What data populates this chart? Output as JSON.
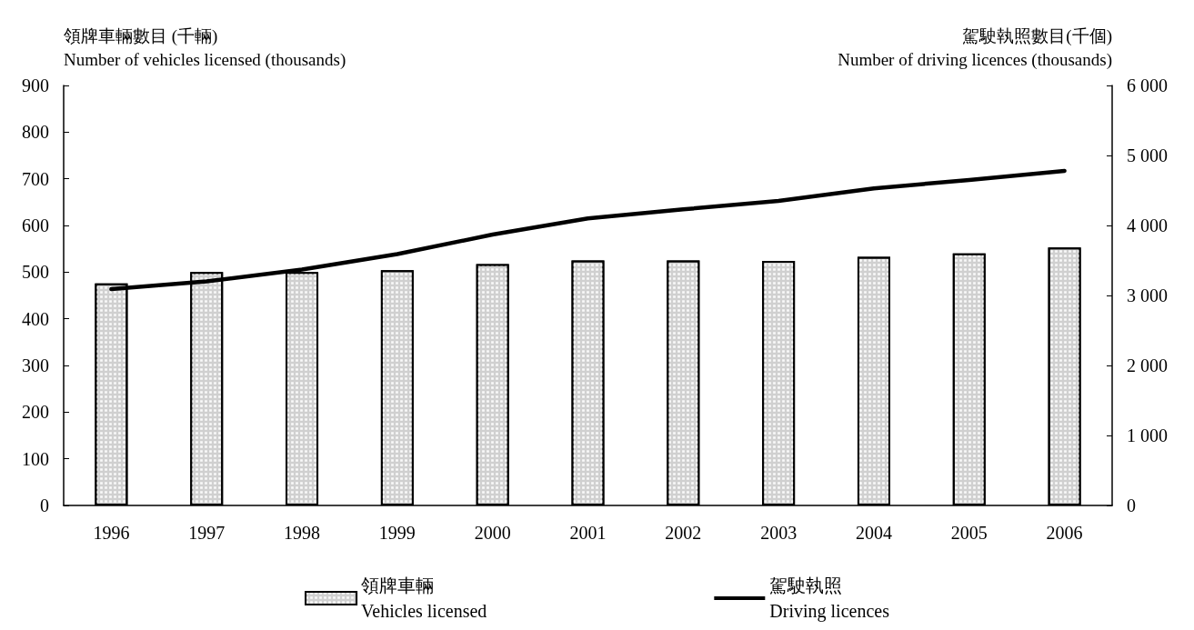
{
  "chart_data": {
    "type": "bar",
    "categories": [
      "1996",
      "1997",
      "1998",
      "1999",
      "2000",
      "2001",
      "2002",
      "2003",
      "2004",
      "2005",
      "2006"
    ],
    "ylabel": "領牌車輛數目 (千輛)\nNumber of vehicles licensed (thousands)",
    "y2label": "駕駛執照數目(千個)\nNumber of driving licences (thousands)",
    "ylim": [
      0,
      900
    ],
    "yticks": [
      0,
      100,
      200,
      300,
      400,
      500,
      600,
      700,
      800,
      900
    ],
    "y2lim": [
      0,
      6000
    ],
    "y2ticks": [
      {
        "value": 0,
        "label": "0"
      },
      {
        "value": 1000,
        "label": "1 000"
      },
      {
        "value": 2000,
        "label": "2 000"
      },
      {
        "value": 3000,
        "label": "3 000"
      },
      {
        "value": 4000,
        "label": "4 000"
      },
      {
        "value": 5000,
        "label": "5 000"
      },
      {
        "value": 6000,
        "label": "6 000"
      }
    ],
    "series": [
      {
        "name": "領牌車輛\nVehicles licensed",
        "color": "#d0d0d0",
        "values": [
          476,
          500,
          500,
          504,
          517,
          525,
          525,
          524,
          533,
          540,
          553
        ]
      },
      {
        "name": "駕駛執照\nDriving licences",
        "type": "line",
        "axis": "y2",
        "color": "#000000",
        "values": [
          3090,
          3200,
          3370,
          3590,
          3870,
          4100,
          4230,
          4350,
          4530,
          4650,
          4780
        ]
      }
    ],
    "grid": false,
    "legend": "bottom",
    "marker": "none"
  }
}
